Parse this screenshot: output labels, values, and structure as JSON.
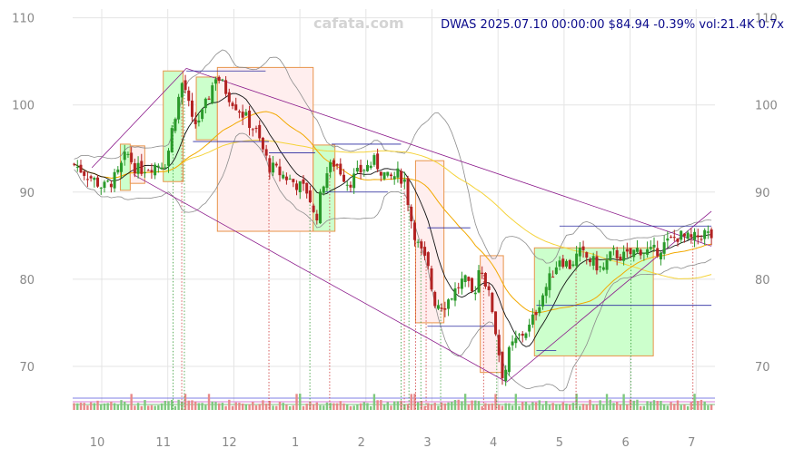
{
  "watermark": "cafata.com",
  "info": "DWAS 2025.07.10 00:00:00 $84.94 -0.39% vol:21.4K 0.7x",
  "colors": {
    "up": "#2a9a2a",
    "down": "#b22222",
    "box_up_fill": "#ccffcc",
    "box_down_fill": "#ffeeee",
    "box_edge": "#e8944a",
    "grid": "#e4e4e4",
    "ma_short": "#111111",
    "ma_mid": "#f2a900",
    "ma_long": "#f5d33a",
    "bollinger": "#8c8c8c",
    "trend": "#8b1a8b",
    "level": "#2a2aa0"
  },
  "chart_data": {
    "type": "candlestick",
    "ylim": [
      65,
      111
    ],
    "y_ticks": [
      70,
      80,
      90,
      100,
      110
    ],
    "x_ticks": [
      {
        "label": "10",
        "month": 0
      },
      {
        "label": "11",
        "month": 1
      },
      {
        "label": "12",
        "month": 2
      },
      {
        "label": "1",
        "month": 3
      },
      {
        "label": "2",
        "month": 4
      },
      {
        "label": "3",
        "month": 5
      },
      {
        "label": "4",
        "month": 6
      },
      {
        "label": "5",
        "month": 7
      },
      {
        "label": "6",
        "month": 8
      },
      {
        "label": "7",
        "month": 9
      }
    ],
    "close_anchors": [
      [
        -0.35,
        93.2
      ],
      [
        -0.15,
        92.0
      ],
      [
        0.1,
        90.5
      ],
      [
        0.3,
        91.8
      ],
      [
        0.45,
        94.5
      ],
      [
        0.6,
        92.5
      ],
      [
        0.8,
        93.0
      ],
      [
        1.05,
        93.5
      ],
      [
        1.15,
        98.0
      ],
      [
        1.3,
        103.0
      ],
      [
        1.45,
        97.5
      ],
      [
        1.6,
        99.0
      ],
      [
        1.8,
        103.5
      ],
      [
        2.0,
        101.0
      ],
      [
        2.2,
        99.0
      ],
      [
        2.4,
        97.0
      ],
      [
        2.6,
        93.0
      ],
      [
        2.8,
        92.0
      ],
      [
        3.0,
        91.0
      ],
      [
        3.2,
        90.0
      ],
      [
        3.3,
        86.5
      ],
      [
        3.45,
        92.0
      ],
      [
        3.6,
        93.5
      ],
      [
        3.8,
        91.0
      ],
      [
        4.0,
        92.5
      ],
      [
        4.2,
        93.5
      ],
      [
        4.4,
        91.5
      ],
      [
        4.55,
        92.0
      ],
      [
        4.65,
        91.5
      ],
      [
        4.75,
        87.0
      ],
      [
        4.85,
        84.0
      ],
      [
        5.0,
        81.5
      ],
      [
        5.1,
        77.5
      ],
      [
        5.25,
        77.0
      ],
      [
        5.4,
        78.5
      ],
      [
        5.55,
        80.0
      ],
      [
        5.7,
        78.0
      ],
      [
        5.8,
        82.0
      ],
      [
        5.9,
        79.0
      ],
      [
        6.0,
        76.0
      ],
      [
        6.05,
        73.0
      ],
      [
        6.15,
        68.5
      ],
      [
        6.25,
        72.0
      ],
      [
        6.4,
        73.5
      ],
      [
        6.55,
        74.5
      ],
      [
        6.7,
        77.5
      ],
      [
        6.85,
        80.0
      ],
      [
        7.0,
        82.5
      ],
      [
        7.15,
        81.5
      ],
      [
        7.3,
        83.0
      ],
      [
        7.5,
        82.0
      ],
      [
        7.65,
        81.0
      ],
      [
        7.8,
        83.0
      ],
      [
        8.0,
        82.5
      ],
      [
        8.2,
        83.5
      ],
      [
        8.4,
        83.0
      ],
      [
        8.6,
        84.0
      ],
      [
        8.8,
        85.0
      ],
      [
        9.0,
        84.5
      ],
      [
        9.2,
        85.3
      ],
      [
        9.3,
        84.9
      ]
    ],
    "boxes": [
      {
        "kind": "up",
        "x0": 0.35,
        "x1": 0.5,
        "y0": 90.2,
        "y1": 95.5
      },
      {
        "kind": "down",
        "x0": 0.5,
        "x1": 0.72,
        "y0": 91.0,
        "y1": 95.3
      },
      {
        "kind": "up",
        "x0": 1.0,
        "x1": 1.3,
        "y0": 91.2,
        "y1": 103.9
      },
      {
        "kind": "up",
        "x0": 1.5,
        "x1": 1.82,
        "y0": 96.0,
        "y1": 103.2
      },
      {
        "kind": "down",
        "x0": 1.82,
        "x1": 3.27,
        "y0": 85.5,
        "y1": 104.3
      },
      {
        "kind": "up",
        "x0": 3.27,
        "x1": 3.6,
        "y0": 85.5,
        "y1": 95.4
      },
      {
        "kind": "down",
        "x0": 4.82,
        "x1": 5.25,
        "y0": 75.0,
        "y1": 93.6
      },
      {
        "kind": "down",
        "x0": 5.8,
        "x1": 6.15,
        "y0": 69.3,
        "y1": 82.7
      },
      {
        "kind": "up",
        "x0": 6.62,
        "x1": 8.42,
        "y0": 71.2,
        "y1": 83.6
      }
    ],
    "trendlines": [
      {
        "x0": -0.08,
        "y0": 92.8,
        "x1": 1.35,
        "y1": 104.2
      },
      {
        "x0": 1.35,
        "y0": 104.2,
        "x1": 9.3,
        "y1": 83.8
      },
      {
        "x0": 0.55,
        "y0": 92.0,
        "x1": 6.2,
        "y1": 68.2
      },
      {
        "x0": 6.2,
        "y0": 68.2,
        "x1": 9.3,
        "y1": 87.8
      }
    ],
    "levels": [
      {
        "x0": 1.35,
        "x1": 2.55,
        "y": 103.9
      },
      {
        "x0": 1.45,
        "x1": 2.6,
        "y": 95.8
      },
      {
        "x0": 3.55,
        "x1": 4.6,
        "y": 95.5
      },
      {
        "x0": 3.45,
        "x1": 4.4,
        "y": 90.0
      },
      {
        "x0": 2.6,
        "x1": 3.3,
        "y": 94.5
      },
      {
        "x0": 5.0,
        "x1": 5.65,
        "y": 85.9
      },
      {
        "x0": 5.0,
        "x1": 6.0,
        "y": 74.6
      },
      {
        "x0": 6.65,
        "x1": 9.3,
        "y": 77.0
      },
      {
        "x0": 6.65,
        "x1": 6.95,
        "y": 71.8
      },
      {
        "x0": 7.0,
        "x1": 9.3,
        "y": 86.1
      }
    ],
    "signals": [
      1.15,
      1.28,
      1.32,
      2.6,
      3.22,
      3.52,
      4.6,
      4.65,
      4.72,
      4.82,
      4.9,
      4.98,
      5.2,
      5.85,
      6.05,
      7.25,
      8.08,
      9.02
    ],
    "grid": true,
    "legend": "none"
  }
}
